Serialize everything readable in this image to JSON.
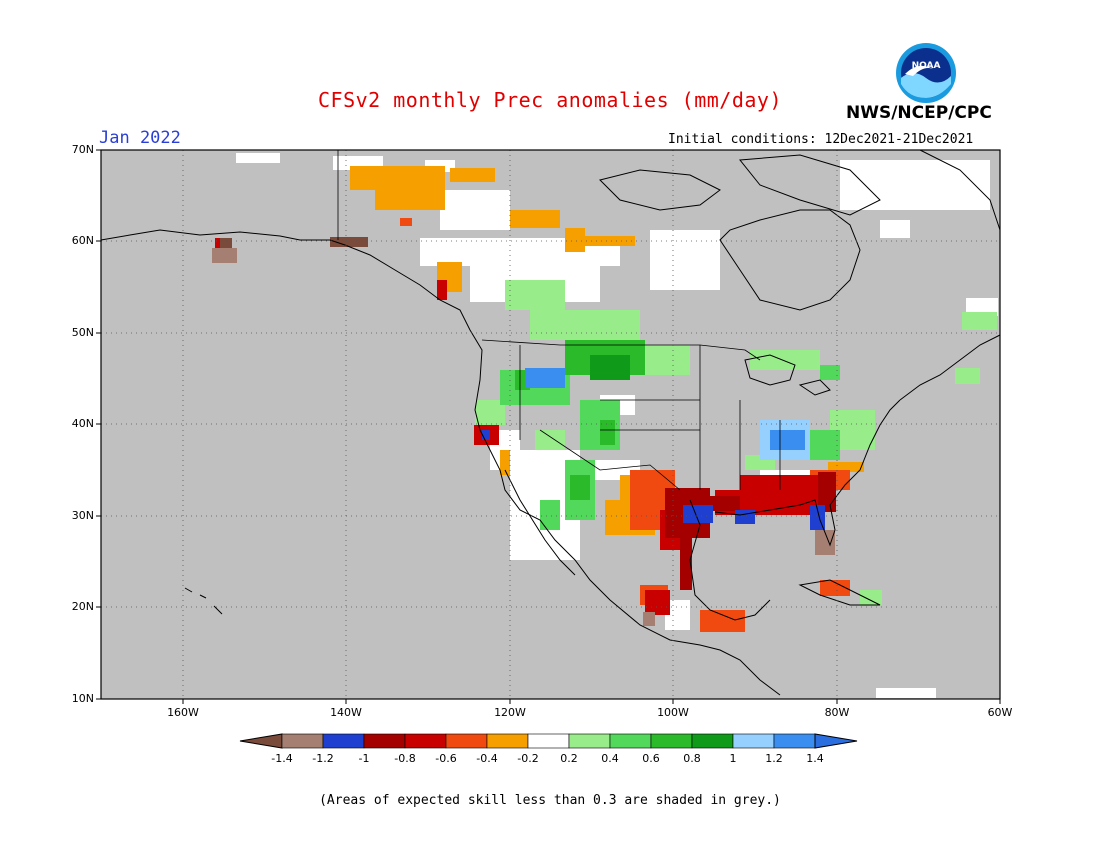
{
  "header": {
    "title": "CFSv2 monthly Prec anomalies (mm/day)",
    "month": "Jan 2022",
    "initial_conditions": "Initial conditions: 12Dec2021-21Dec2021",
    "agency": "NWS/NCEP/CPC",
    "logo_text": "NOAA"
  },
  "axes": {
    "lat_labels": [
      "70N",
      "60N",
      "50N",
      "40N",
      "30N",
      "20N",
      "10N"
    ],
    "lon_labels": [
      "160W",
      "140W",
      "120W",
      "100W",
      "80W",
      "60W"
    ]
  },
  "legend": {
    "ticks": [
      "-1.4",
      "-1.2",
      "-1",
      "-0.8",
      "-0.6",
      "-0.4",
      "-0.2",
      "0.2",
      "0.4",
      "0.6",
      "0.8",
      "1",
      "1.2",
      "1.4"
    ],
    "colors": [
      "#7a4a3a",
      "#a47f72",
      "#1e3fd0",
      "#a50000",
      "#c90000",
      "#f04a10",
      "#f5a000",
      "#ffffff",
      "#98ec8a",
      "#52d85a",
      "#2aba2a",
      "#0f9a1a",
      "#96d0ff",
      "#3a8ef0",
      "#2a6ee0"
    ]
  },
  "colors": {
    "grey_mask": "#c0c0c0",
    "ocean": "#c0c0c0",
    "title": "#e00000",
    "month": "#2a3fd8"
  },
  "footnote": "(Areas of expected skill less than 0.3 are shaded in grey.)"
}
